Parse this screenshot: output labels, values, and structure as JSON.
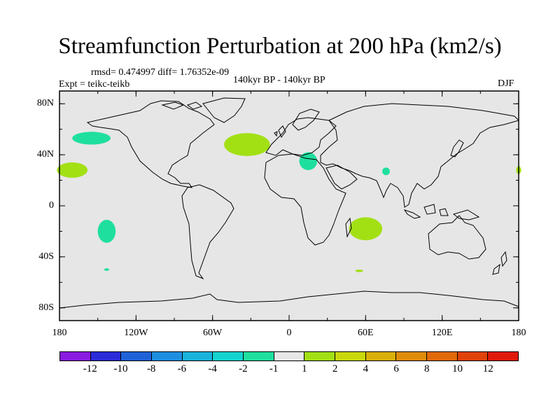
{
  "title": "Streamfunction Perturbation at 200 hPa (km2/s)",
  "stats": "rmsd= 0.474997 diff= 1.76352e-09",
  "experiment": "Expt = teikc-teikb",
  "period": "140kyr BP - 140kyr BP",
  "season": "DJF",
  "lat_ticks": [
    "80N",
    "40N",
    "0",
    "40S",
    "80S"
  ],
  "lon_ticks": [
    "180",
    "120W",
    "60W",
    "0",
    "60E",
    "120E",
    "180"
  ],
  "colorbar": {
    "colors": [
      "#8a1be0",
      "#2b2bd8",
      "#1f62d8",
      "#1e8fe0",
      "#19b3dc",
      "#14d3cf",
      "#1fdf9e",
      "#e6e6e6",
      "#a2e014",
      "#c9d80c",
      "#d9b00a",
      "#df8c0a",
      "#e06a0a",
      "#e0420a",
      "#e01a0a"
    ],
    "labels": [
      "-12",
      "-10",
      "-8",
      "-6",
      "-4",
      "-2",
      "-1",
      "1",
      "2",
      "4",
      "6",
      "8",
      "10",
      "12"
    ]
  },
  "colors": {
    "land_background": "#e6e6e6",
    "coastline": "#000000",
    "positive": "#a2e014",
    "negative": "#1fdf9e"
  },
  "chart_data": {
    "type": "filled-contour-map",
    "variable": "Streamfunction Perturbation at 200 hPa",
    "units": "km2/s",
    "projection": "cylindrical-equidistant",
    "lon_range": [
      -180,
      180
    ],
    "lat_range": [
      -90,
      90
    ],
    "contour_levels": [
      -12,
      -10,
      -8,
      -6,
      -4,
      -2,
      -1,
      1,
      2,
      4,
      6,
      8,
      10,
      12
    ],
    "anomalies": [
      {
        "name": "north-pacific-negative",
        "center_lon": -155,
        "center_lat": 53,
        "lon_radius": 15,
        "lat_radius": 5,
        "class": "-2 to -1"
      },
      {
        "name": "subtropical-pacific-positive",
        "center_lon": -170,
        "center_lat": 28,
        "lon_radius": 12,
        "lat_radius": 6,
        "class": "1 to 2"
      },
      {
        "name": "north-atlantic-positive",
        "center_lon": -33,
        "center_lat": 48,
        "lon_radius": 18,
        "lat_radius": 9,
        "class": "1 to 2"
      },
      {
        "name": "mediterranean-negative",
        "center_lon": 15,
        "center_lat": 35,
        "lon_radius": 7,
        "lat_radius": 7,
        "class": "-2 to -1"
      },
      {
        "name": "india-negative",
        "center_lon": 76,
        "center_lat": 27,
        "lon_radius": 3,
        "lat_radius": 3,
        "class": "-2 to -1"
      },
      {
        "name": "south-pacific-negative",
        "center_lon": -143,
        "center_lat": -20,
        "lon_radius": 7,
        "lat_radius": 9,
        "class": "-2 to -1"
      },
      {
        "name": "south-pacific-small-negative",
        "center_lon": -143,
        "center_lat": -50,
        "lon_radius": 2,
        "lat_radius": 1,
        "class": "-2 to -1"
      },
      {
        "name": "south-indian-ocean-positive",
        "center_lon": 60,
        "center_lat": -18,
        "lon_radius": 13,
        "lat_radius": 9,
        "class": "1 to 2"
      },
      {
        "name": "southern-ocean-small-positive",
        "center_lon": 55,
        "center_lat": -51,
        "lon_radius": 3,
        "lat_radius": 1,
        "class": "1 to 2"
      },
      {
        "name": "dateline-edge-positive",
        "center_lon": 180,
        "center_lat": 28,
        "lon_radius": 2,
        "lat_radius": 3,
        "class": "1 to 2"
      }
    ]
  }
}
